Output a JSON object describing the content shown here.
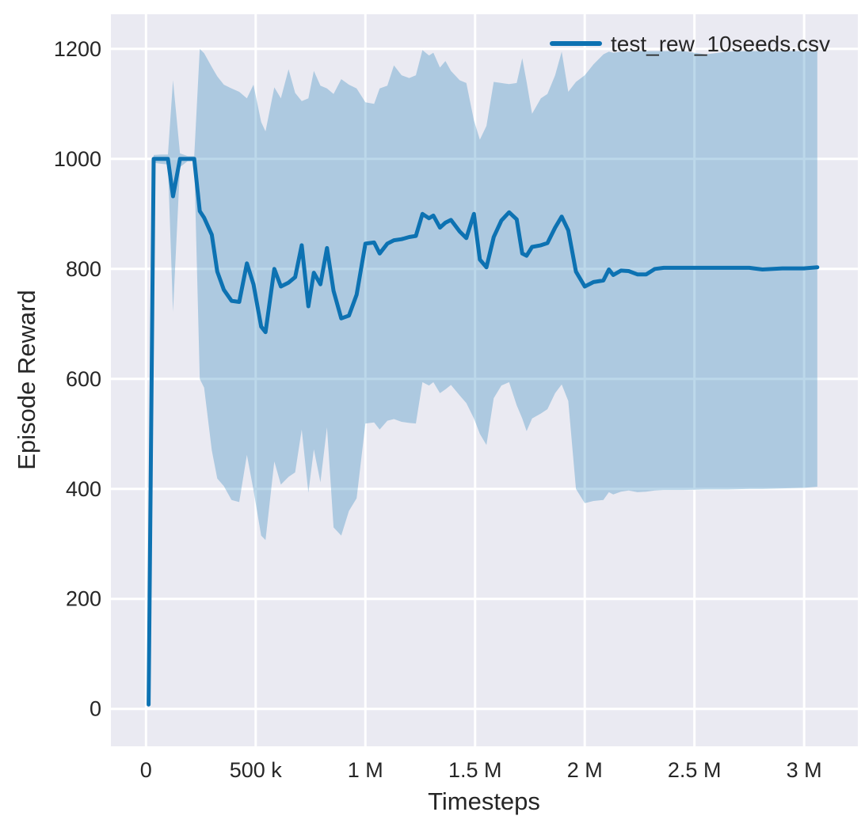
{
  "figure": {
    "background": "#ffffff",
    "text_color": "#262626"
  },
  "chart_data": {
    "type": "line",
    "title": "",
    "xlabel": "Timesteps",
    "ylabel": "Episode Reward",
    "legend": {
      "position": "upper right",
      "entries": [
        "test_rew_10seeds.csv"
      ]
    },
    "axes": {
      "plot_background": "#eaeaf2",
      "grid": true,
      "grid_color": "#ffffff",
      "xlim_millions": [
        -0.16,
        3.245
      ],
      "ylim": [
        -68,
        1263
      ],
      "x_ticks": [
        {
          "value": 0.0,
          "label": "0"
        },
        {
          "value": 0.5,
          "label": "500 k"
        },
        {
          "value": 1.0,
          "label": "1 M"
        },
        {
          "value": 1.5,
          "label": "1.5 M"
        },
        {
          "value": 2.0,
          "label": "2 M"
        },
        {
          "value": 2.5,
          "label": "2.5 M"
        },
        {
          "value": 3.0,
          "label": "3 M"
        }
      ],
      "y_ticks": [
        {
          "value": 0,
          "label": "0"
        },
        {
          "value": 200,
          "label": "200"
        },
        {
          "value": 400,
          "label": "400"
        },
        {
          "value": 600,
          "label": "600"
        },
        {
          "value": 800,
          "label": "800"
        },
        {
          "value": 1000,
          "label": "1000"
        },
        {
          "value": 1200,
          "label": "1200"
        }
      ]
    },
    "series": [
      {
        "name": "test_rew_10seeds.csv",
        "color": "#0d72b2",
        "line_width": 5,
        "band_opacity": 0.28,
        "x_millions": [
          0.012,
          0.035,
          0.07,
          0.1,
          0.123,
          0.155,
          0.19,
          0.22,
          0.245,
          0.265,
          0.3,
          0.325,
          0.355,
          0.39,
          0.425,
          0.46,
          0.49,
          0.525,
          0.545,
          0.585,
          0.615,
          0.65,
          0.68,
          0.71,
          0.74,
          0.765,
          0.795,
          0.825,
          0.855,
          0.89,
          0.925,
          0.96,
          1.0,
          1.04,
          1.065,
          1.1,
          1.13,
          1.165,
          1.2,
          1.23,
          1.26,
          1.29,
          1.31,
          1.34,
          1.365,
          1.39,
          1.43,
          1.46,
          1.495,
          1.522,
          1.552,
          1.585,
          1.62,
          1.655,
          1.69,
          1.715,
          1.735,
          1.76,
          1.8,
          1.83,
          1.865,
          1.895,
          1.925,
          1.96,
          2.0,
          2.04,
          2.085,
          2.11,
          2.13,
          2.165,
          2.2,
          2.24,
          2.28,
          2.32,
          2.36,
          2.45,
          2.55,
          2.65,
          2.75,
          2.81,
          2.9,
          3.0,
          3.06
        ],
        "mean": [
          8,
          1000,
          1000,
          1000,
          932,
          1000,
          1000,
          1000,
          905,
          893,
          862,
          795,
          762,
          742,
          740,
          810,
          772,
          695,
          685,
          800,
          768,
          775,
          785,
          843,
          732,
          793,
          772,
          838,
          760,
          710,
          715,
          753,
          846,
          848,
          828,
          846,
          852,
          854,
          858,
          860,
          900,
          892,
          897,
          875,
          884,
          889,
          868,
          856,
          900,
          817,
          803,
          858,
          888,
          903,
          890,
          828,
          824,
          840,
          843,
          847,
          875,
          895,
          870,
          795,
          768,
          776,
          779,
          799,
          789,
          797,
          796,
          790,
          790,
          800,
          802,
          802,
          802,
          802,
          802,
          799,
          801,
          801,
          803
        ],
        "band_lower": [
          3,
          993,
          991,
          990,
          722,
          985,
          996,
          996,
          600,
          584,
          470,
          419,
          405,
          380,
          376,
          462,
          398,
          315,
          307,
          450,
          408,
          422,
          430,
          508,
          393,
          472,
          412,
          512,
          330,
          315,
          360,
          383,
          519,
          521,
          508,
          524,
          527,
          522,
          520,
          519,
          594,
          588,
          594,
          574,
          581,
          589,
          570,
          556,
          528,
          500,
          480,
          565,
          588,
          594,
          552,
          528,
          505,
          528,
          537,
          545,
          574,
          590,
          560,
          400,
          374,
          378,
          380,
          394,
          390,
          395,
          397,
          394,
          395,
          397,
          398,
          398,
          399,
          399,
          400,
          400,
          401,
          402,
          404
        ],
        "band_upper": [
          14,
          1007,
          1008,
          1008,
          1143,
          1010,
          1005,
          1005,
          1200,
          1192,
          1167,
          1150,
          1135,
          1128,
          1122,
          1110,
          1135,
          1067,
          1050,
          1130,
          1110,
          1163,
          1120,
          1105,
          1110,
          1160,
          1133,
          1128,
          1118,
          1145,
          1135,
          1128,
          1103,
          1100,
          1128,
          1133,
          1170,
          1152,
          1147,
          1152,
          1198,
          1188,
          1193,
          1166,
          1178,
          1160,
          1143,
          1138,
          1070,
          1035,
          1060,
          1140,
          1138,
          1136,
          1138,
          1183,
          1140,
          1082,
          1110,
          1118,
          1152,
          1195,
          1122,
          1140,
          1152,
          1172,
          1190,
          1195,
          1193,
          1195,
          1195,
          1196,
          1196,
          1196,
          1196,
          1196,
          1190,
          1195,
          1196,
          1196,
          1196,
          1196,
          1196
        ]
      }
    ]
  }
}
